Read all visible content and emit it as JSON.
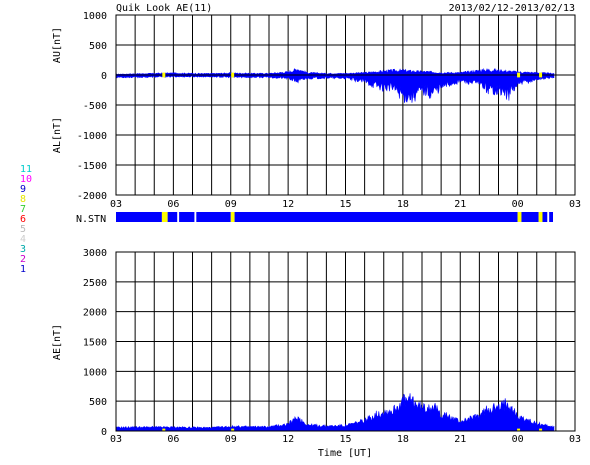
{
  "header": {
    "title": "Quik Look AE(11)",
    "date_range": "2013/02/12-2013/02/13"
  },
  "colors": {
    "fill": "#0000ff",
    "highlight": "#ffff00",
    "grid": "#000000"
  },
  "station_legend": {
    "items": [
      {
        "label": "11",
        "color": "#00cccc"
      },
      {
        "label": "10",
        "color": "#ff00ff"
      },
      {
        "label": "9",
        "color": "#0000cc"
      },
      {
        "label": "8",
        "color": "#e6e600"
      },
      {
        "label": "7",
        "color": "#33cc33"
      },
      {
        "label": "6",
        "color": "#ff0000"
      },
      {
        "label": "5",
        "color": "#bbbbbb"
      },
      {
        "label": "4",
        "color": "#cccccc"
      },
      {
        "label": "3",
        "color": "#00aaaa"
      },
      {
        "label": "2",
        "color": "#cc00cc"
      },
      {
        "label": "1",
        "color": "#0000cc"
      }
    ]
  },
  "chart_data": [
    {
      "type": "area",
      "name": "AU/AL",
      "ylabel_top": "AU[nT]",
      "ylabel_bottom": "AL[nT]",
      "ylim": [
        -2000,
        1000
      ],
      "yticks": [
        1000,
        500,
        0,
        -500,
        -1000,
        -1500,
        -2000
      ],
      "xticks": [
        "03",
        "06",
        "09",
        "12",
        "15",
        "18",
        "21",
        "00",
        "03"
      ],
      "xrange_hours": [
        3,
        27
      ],
      "grid": true,
      "series": [
        {
          "name": "AU",
          "x": [
            3,
            4,
            5,
            6,
            7,
            8,
            9,
            10,
            11,
            12,
            12.5,
            13,
            14,
            15,
            16,
            16.5,
            17,
            17.5,
            18,
            18.5,
            19,
            19.5,
            20,
            21,
            22,
            22.5,
            23,
            23.5,
            24,
            25,
            25.9
          ],
          "values": [
            10,
            15,
            20,
            25,
            20,
            18,
            25,
            20,
            20,
            40,
            80,
            30,
            20,
            20,
            30,
            40,
            50,
            60,
            60,
            50,
            45,
            40,
            30,
            30,
            60,
            70,
            60,
            50,
            40,
            30,
            20
          ]
        },
        {
          "name": "AL",
          "x": [
            3,
            4,
            5,
            6,
            7,
            8,
            9,
            10,
            11,
            12,
            12.5,
            13,
            14,
            15,
            16,
            16.5,
            17,
            17.5,
            18,
            18.5,
            19,
            19.5,
            20,
            21,
            22,
            22.5,
            23,
            23.5,
            24,
            25,
            25.9
          ],
          "values": [
            -40,
            -40,
            -35,
            -30,
            -30,
            -30,
            -40,
            -40,
            -40,
            -60,
            -120,
            -60,
            -50,
            -60,
            -120,
            -190,
            -230,
            -240,
            -380,
            -400,
            -280,
            -340,
            -220,
            -110,
            -160,
            -280,
            -270,
            -380,
            -170,
            -80,
            -40
          ]
        }
      ]
    },
    {
      "type": "bar",
      "name": "N.STN",
      "label": "N.STN",
      "segments": [
        {
          "from": 3,
          "to": 5.4,
          "color": "#0000ff"
        },
        {
          "from": 5.4,
          "to": 5.7,
          "color": "#ffff00"
        },
        {
          "from": 5.7,
          "to": 6.2,
          "color": "#0000ff"
        },
        {
          "from": 6.3,
          "to": 7.1,
          "color": "#0000ff"
        },
        {
          "from": 7.2,
          "to": 9.0,
          "color": "#0000ff"
        },
        {
          "from": 9.0,
          "to": 9.2,
          "color": "#ffff00"
        },
        {
          "from": 9.2,
          "to": 24.0,
          "color": "#0000ff"
        },
        {
          "from": 24.0,
          "to": 24.2,
          "color": "#ffff00"
        },
        {
          "from": 24.2,
          "to": 25.1,
          "color": "#0000ff"
        },
        {
          "from": 25.1,
          "to": 25.3,
          "color": "#ffff00"
        },
        {
          "from": 25.3,
          "to": 25.55,
          "color": "#0000ff"
        },
        {
          "from": 25.65,
          "to": 25.85,
          "color": "#0000ff"
        }
      ]
    },
    {
      "type": "area",
      "name": "AE",
      "ylabel": "AE[nT]",
      "xlabel": "Time [UT]",
      "ylim": [
        0,
        3000
      ],
      "yticks": [
        3000,
        2500,
        2000,
        1500,
        1000,
        500,
        0
      ],
      "xticks": [
        "03",
        "06",
        "09",
        "12",
        "15",
        "18",
        "21",
        "00",
        "03"
      ],
      "xrange_hours": [
        3,
        27
      ],
      "grid": true,
      "series": [
        {
          "name": "AE",
          "x": [
            3,
            4,
            5,
            6,
            7,
            8,
            9,
            10,
            11,
            12,
            12.5,
            13,
            14,
            15,
            16,
            16.5,
            17,
            17.5,
            18,
            18.5,
            19,
            19.5,
            20,
            21,
            22,
            22.5,
            23,
            23.5,
            24,
            25,
            25.9
          ],
          "values": [
            50,
            55,
            55,
            55,
            50,
            48,
            65,
            60,
            60,
            100,
            200,
            90,
            70,
            80,
            150,
            230,
            280,
            300,
            440,
            450,
            325,
            380,
            250,
            140,
            220,
            350,
            330,
            430,
            210,
            110,
            60
          ]
        }
      ]
    }
  ]
}
